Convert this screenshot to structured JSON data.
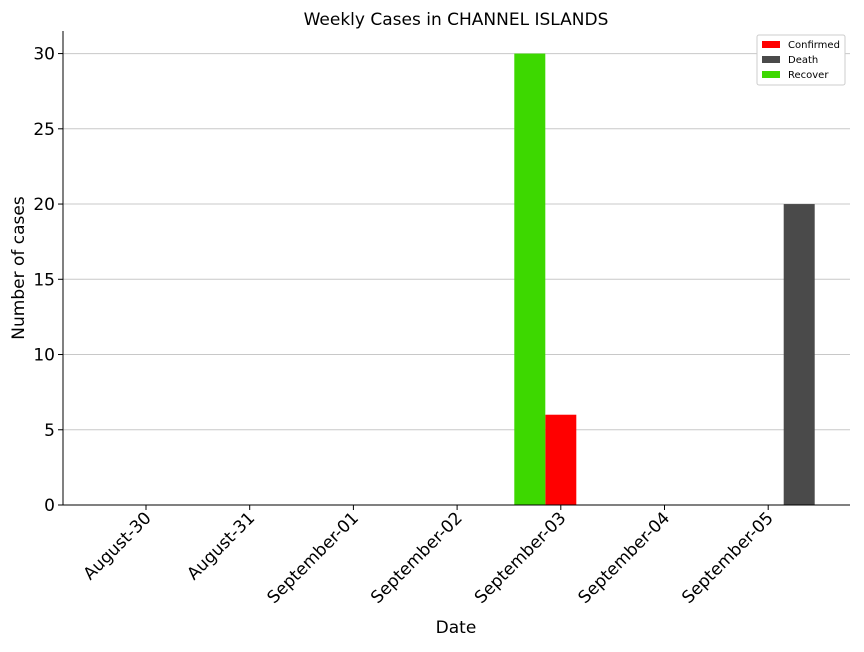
{
  "chart_data": {
    "type": "bar",
    "title": "Weekly Cases in CHANNEL ISLANDS",
    "xlabel": "Date",
    "ylabel": "Number of cases",
    "categories": [
      "August-30",
      "August-31",
      "September-01",
      "September-02",
      "September-03",
      "September-04",
      "September-05"
    ],
    "yticks": [
      0,
      5,
      10,
      15,
      20,
      25,
      30
    ],
    "ylim": [
      0,
      31.5
    ],
    "grid": "horizontal",
    "legend_position": "top-right",
    "series": [
      {
        "name": "Confirmed",
        "color": "#ff0000",
        "values": [
          0,
          0,
          0,
          0,
          6,
          0,
          0
        ]
      },
      {
        "name": "Death",
        "color": "#4a4a4a",
        "values": [
          0,
          0,
          0,
          0,
          0,
          0,
          20
        ]
      },
      {
        "name": "Recover",
        "color": "#3dd800",
        "values": [
          0,
          0,
          0,
          0,
          30,
          0,
          0
        ]
      }
    ]
  }
}
